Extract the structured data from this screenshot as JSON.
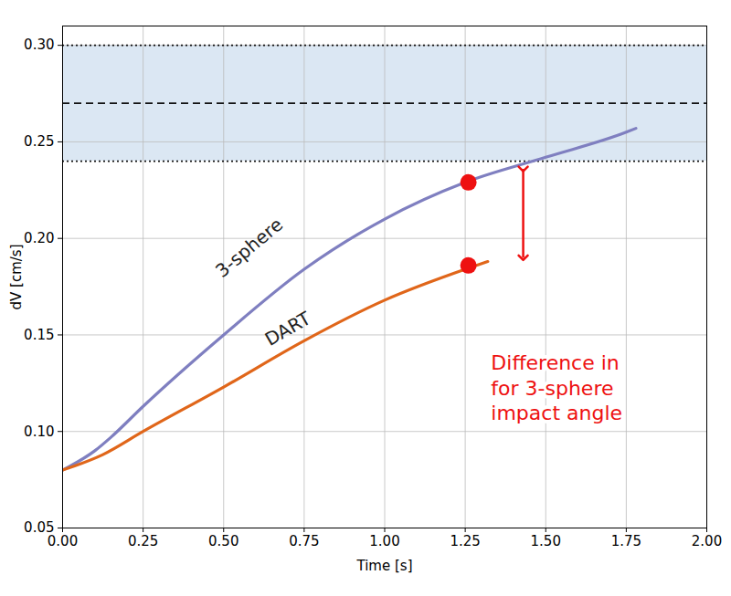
{
  "chart_data": {
    "type": "line",
    "xlabel": "Time [s]",
    "ylabel": "dV [cm/s]",
    "xlim": [
      0,
      2
    ],
    "ylim": [
      0.05,
      0.31
    ],
    "xticks": [
      {
        "value": 0,
        "label": "0.00"
      },
      0.25,
      {
        "value": 0.5,
        "label": "0.50"
      },
      0.75,
      {
        "value": 1,
        "label": "1.00"
      },
      1.25,
      {
        "value": 1.5,
        "label": "1.50"
      },
      1.75,
      {
        "value": 2,
        "label": "2.00"
      }
    ],
    "yticks": [
      0.05,
      {
        "value": 0.1,
        "label": "0.10"
      },
      0.15,
      {
        "value": 0.2,
        "label": "0.20"
      },
      0.25,
      {
        "value": 0.3,
        "label": "0.30"
      }
    ],
    "grid": true,
    "series": [
      {
        "name": "3-sphere",
        "color": "#7f7fc0",
        "x": [
          0,
          0.1,
          0.15,
          0.25,
          0.5,
          0.75,
          1.0,
          1.25,
          1.5,
          1.75,
          1.78
        ],
        "values": [
          0.08,
          0.09,
          0.097,
          0.113,
          0.15,
          0.184,
          0.21,
          0.229,
          0.242,
          0.255,
          0.257
        ],
        "label": {
          "x": 0.58,
          "y": 0.195
        }
      },
      {
        "name": "DART",
        "color": "#e0661a",
        "x": [
          0,
          0.125,
          0.25,
          0.5,
          0.75,
          1.0,
          1.25,
          1.32
        ],
        "values": [
          0.08,
          0.088,
          0.1,
          0.123,
          0.147,
          0.168,
          0.184,
          0.188
        ],
        "label": {
          "x": 0.7,
          "y": 0.153
        }
      }
    ],
    "band": {
      "y": [
        0.24,
        0.3
      ],
      "color": "#dbe7f3"
    },
    "reference_lines": [
      {
        "y": 0.24,
        "line_style": "dotted"
      },
      {
        "y": 0.27,
        "line_style": "dashed"
      },
      {
        "y": 0.3,
        "line_style": "dotted"
      }
    ],
    "annotations": {
      "color": "#ee1111",
      "points": [
        {
          "x": 1.26,
          "y": 0.229
        },
        {
          "x": 1.26,
          "y": 0.186
        }
      ],
      "arrow": {
        "x": 1.43,
        "y1": 0.236,
        "y2": 0.19
      },
      "text": {
        "x": 1.33,
        "y": 0.123,
        "text": "Difference in\nfor 3-sphere\nimpact angle"
      }
    }
  }
}
